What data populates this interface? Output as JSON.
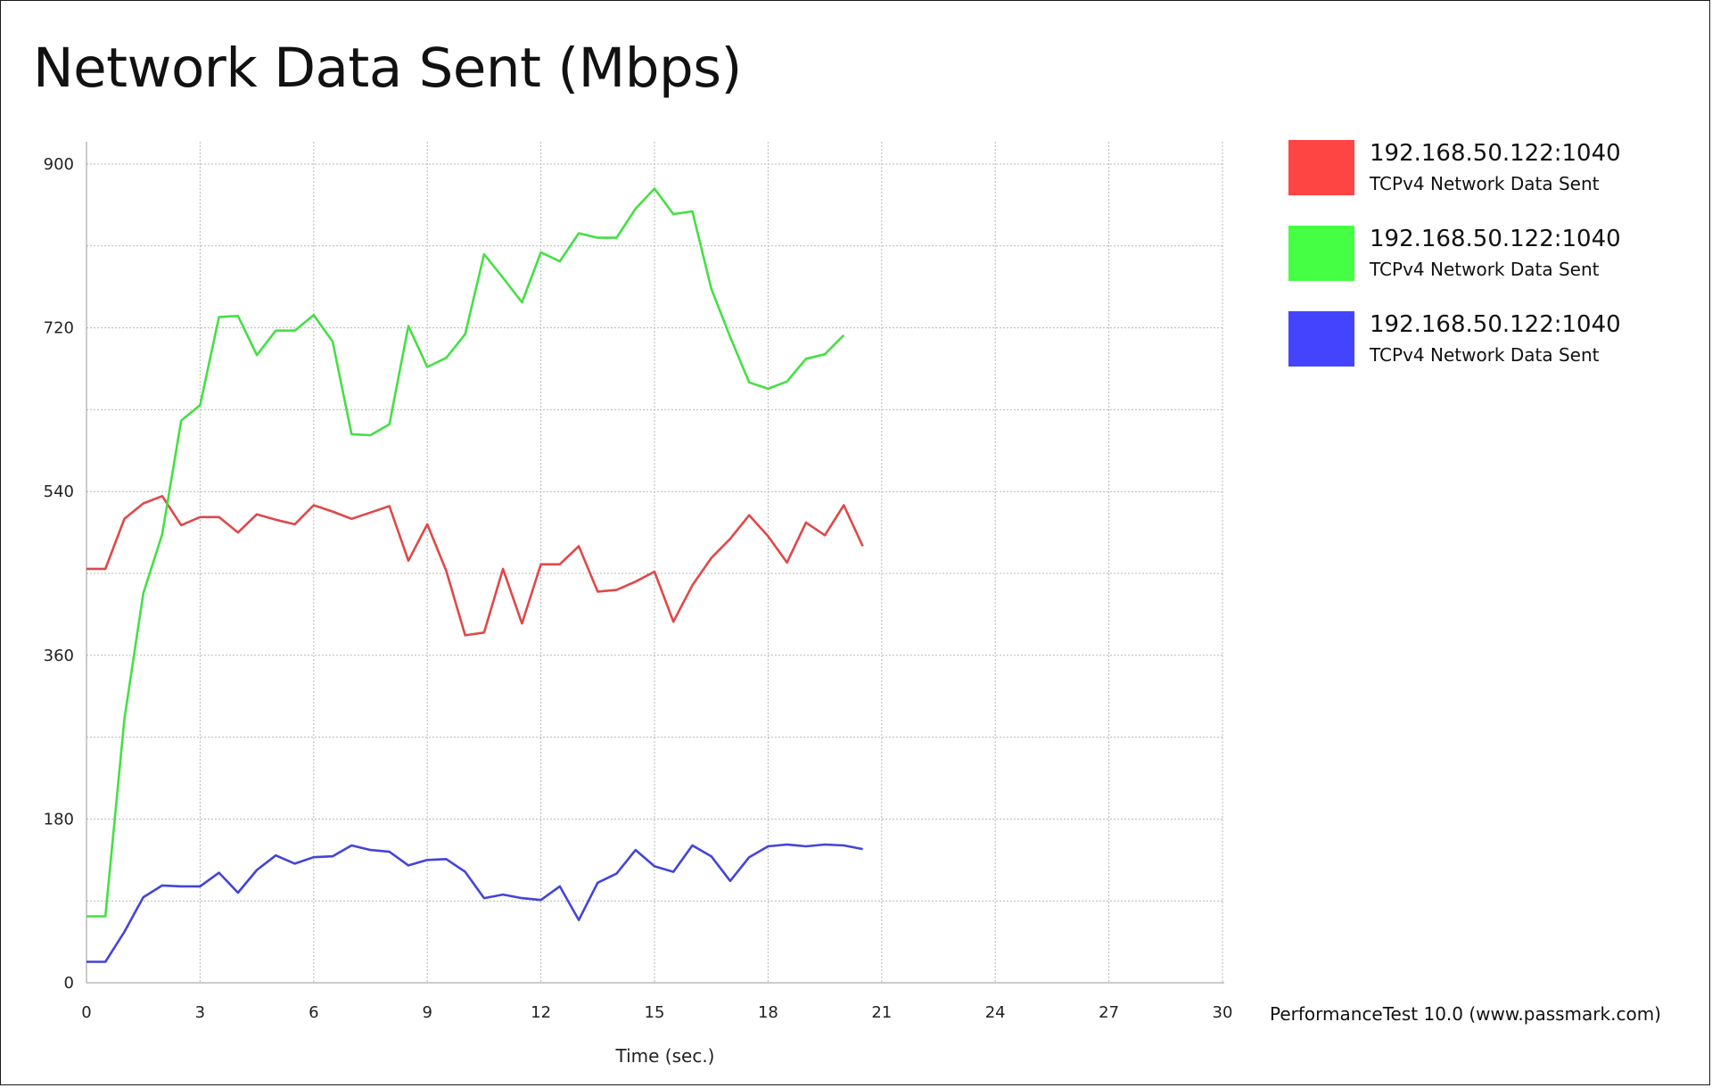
{
  "chart_data": {
    "type": "line",
    "title": "Network Data Sent (Mbps)",
    "xlabel": "Time (sec.)",
    "ylabel": "",
    "xlim": [
      0,
      30
    ],
    "ylim": [
      0,
      900
    ],
    "xticks": [
      0,
      3,
      6,
      9,
      12,
      15,
      18,
      21,
      24,
      27,
      30
    ],
    "yticks": [
      0,
      180,
      360,
      540,
      720,
      900
    ],
    "grid": true,
    "legend_position": "right",
    "series": [
      {
        "name": "192.168.50.122:1040",
        "subtitle": "TCPv4 Network Data Sent",
        "color": "#e04848",
        "x": [
          0,
          0.5,
          1,
          1.5,
          2,
          2.5,
          3,
          3.5,
          4,
          4.5,
          5,
          5.5,
          6,
          6.5,
          7,
          7.5,
          8,
          8.5,
          9,
          9.5,
          10,
          10.5,
          11,
          11.5,
          12,
          12.5,
          13,
          13.5,
          14,
          14.5,
          15,
          15.5,
          16,
          16.5,
          17,
          17.5,
          18,
          18.5,
          19,
          19.5,
          20,
          20.5
        ],
        "y": [
          455,
          455,
          510,
          527,
          535,
          503,
          512,
          512,
          495,
          515,
          509,
          504,
          525,
          518,
          510,
          517,
          524,
          464,
          504,
          453,
          382,
          385,
          455,
          395,
          460,
          460,
          480,
          430,
          432,
          441,
          452,
          397,
          437,
          467,
          488,
          514,
          491,
          462,
          506,
          492,
          525,
          480
        ]
      },
      {
        "name": "192.168.50.122:1040",
        "subtitle": "TCPv4 Network Data Sent",
        "color": "#44e044",
        "x": [
          0,
          0.5,
          1,
          1.5,
          2,
          2.5,
          3,
          3.5,
          4,
          4.5,
          5,
          5.5,
          6,
          6.5,
          7,
          7.5,
          8,
          8.5,
          9,
          9.5,
          10,
          10.5,
          11,
          11.5,
          12,
          12.5,
          13,
          13.5,
          14,
          14.5,
          15,
          15.5,
          16,
          16.5,
          17,
          17.5,
          18,
          18.5,
          19,
          19.5,
          20
        ],
        "y": [
          73,
          73,
          290,
          428,
          493,
          618,
          635,
          732,
          733,
          690,
          717,
          717,
          734,
          705,
          603,
          602,
          614,
          722,
          677,
          687,
          713,
          801,
          775,
          748,
          803,
          793,
          824,
          819,
          819,
          851,
          873,
          845,
          848,
          763,
          710,
          660,
          653,
          661,
          686,
          691,
          712
        ]
      },
      {
        "name": "192.168.50.122:1040",
        "subtitle": "TCPv4 Network Data Sent",
        "color": "#4444d8",
        "x": [
          0,
          0.5,
          1,
          1.5,
          2,
          2.5,
          3,
          3.5,
          4,
          4.5,
          5,
          5.5,
          6,
          6.5,
          7,
          7.5,
          8,
          8.5,
          9,
          9.5,
          10,
          10.5,
          11,
          11.5,
          12,
          12.5,
          13,
          13.5,
          14,
          14.5,
          15,
          15.5,
          16,
          16.5,
          17,
          17.5,
          18,
          18.5,
          19,
          19.5,
          20,
          20.5
        ],
        "y": [
          23,
          23,
          56,
          94,
          107,
          106,
          106,
          121,
          99,
          124,
          140,
          131,
          138,
          139,
          151,
          146,
          144,
          129,
          135,
          136,
          122,
          93,
          97,
          93,
          91,
          106,
          69,
          110,
          120,
          146,
          128,
          122,
          151,
          139,
          112,
          138,
          150,
          152,
          150,
          152,
          151,
          147
        ]
      }
    ]
  },
  "credit": "PerformanceTest 10.0 (www.passmark.com)"
}
